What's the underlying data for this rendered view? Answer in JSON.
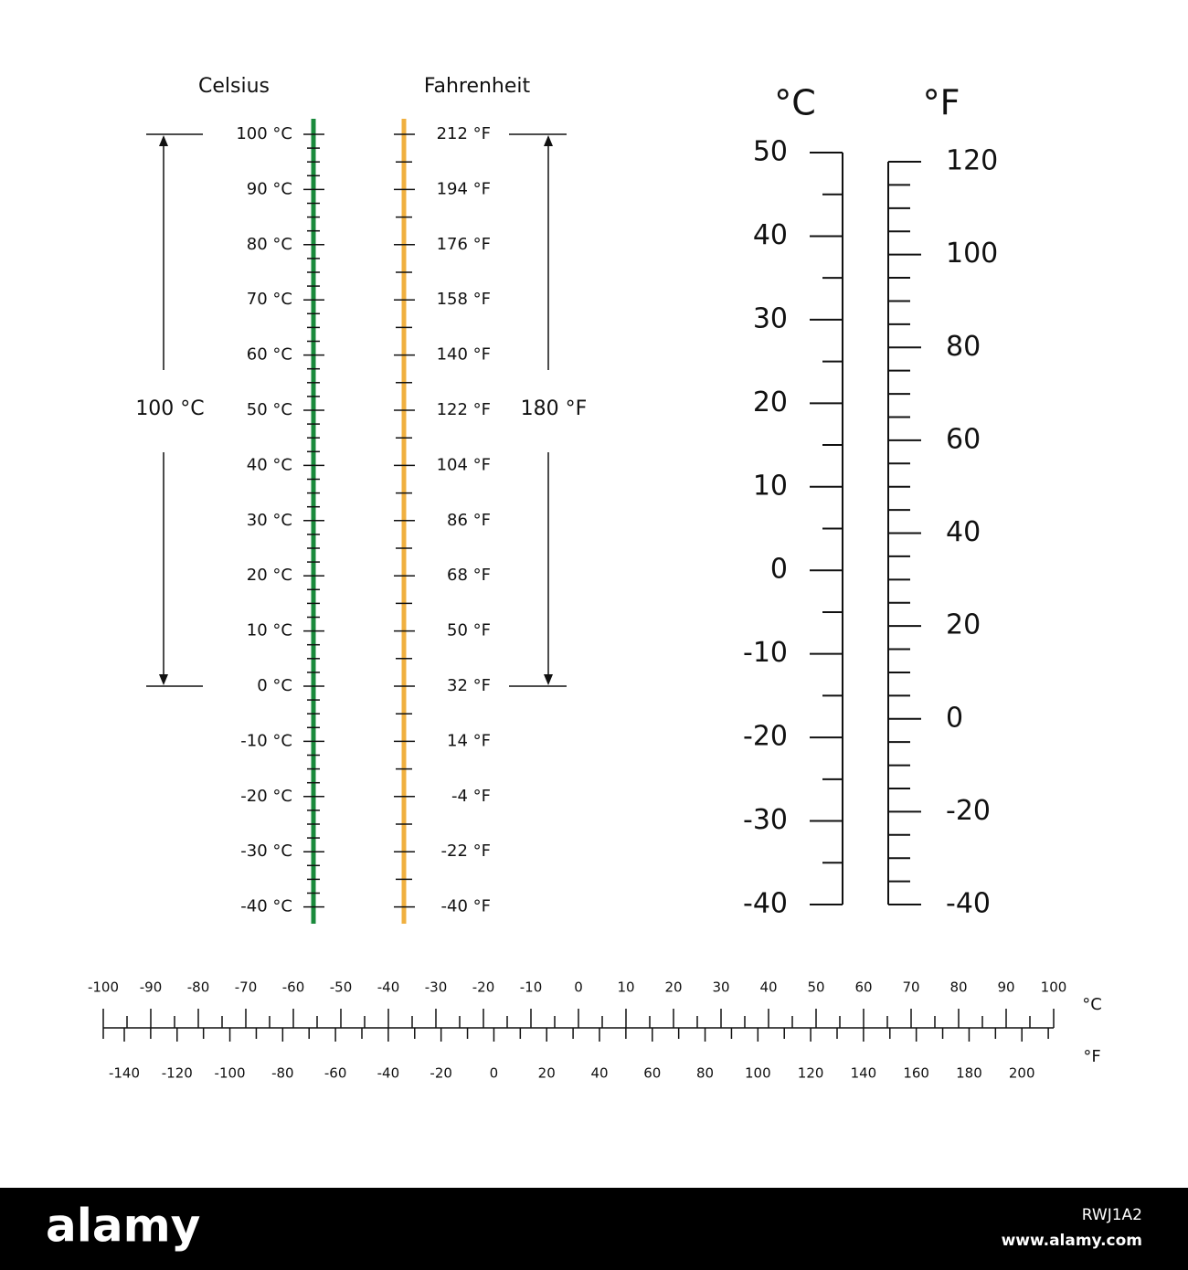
{
  "left": {
    "celsius_title": "Celsius",
    "fahrenheit_title": "Fahrenheit",
    "celsius_labels": [
      "100 °C",
      "90 °C",
      "80 °C",
      "70 °C",
      "60 °C",
      "50 °C",
      "40 °C",
      "30 °C",
      "20 °C",
      "10 °C",
      "0 °C",
      "-10 °C",
      "-20 °C",
      "-30 °C",
      "-40 °C"
    ],
    "fahrenheit_labels": [
      "212 °F",
      "194 °F",
      "176 °F",
      "158 °F",
      "140 °F",
      "122 °F",
      "104 °F",
      "86 °F",
      "68 °F",
      "50 °F",
      "32 °F",
      "14 °F",
      "-4 °F",
      "-22 °F",
      "-40 °F"
    ],
    "celsius_span": "100 °C",
    "fahrenheit_span": "180 °F"
  },
  "right": {
    "celsius_header": "°C",
    "fahrenheit_header": "°F",
    "celsius_labels": [
      "50",
      "40",
      "30",
      "20",
      "10",
      "0",
      "-10",
      "-20",
      "-30",
      "-40"
    ],
    "fahrenheit_labels": [
      "120",
      "100",
      "80",
      "60",
      "40",
      "20",
      "0",
      "-20",
      "-40"
    ]
  },
  "bottom": {
    "celsius_labels": [
      "-100",
      "-90",
      "-80",
      "-70",
      "-60",
      "-50",
      "-40",
      "-30",
      "-20",
      "-10",
      "0",
      "10",
      "20",
      "30",
      "40",
      "50",
      "60",
      "70",
      "80",
      "90",
      "100"
    ],
    "fahrenheit_labels": [
      "-140",
      "-120",
      "-100",
      "-80",
      "-60",
      "-40",
      "-20",
      "0",
      "20",
      "40",
      "60",
      "80",
      "100",
      "120",
      "140",
      "160",
      "180",
      "200"
    ],
    "celsius_unit": "°C",
    "fahrenheit_unit": "°F"
  },
  "footer": {
    "brand": "alamy",
    "image_id": "RWJ1A2",
    "url": "www.alamy.com"
  }
}
